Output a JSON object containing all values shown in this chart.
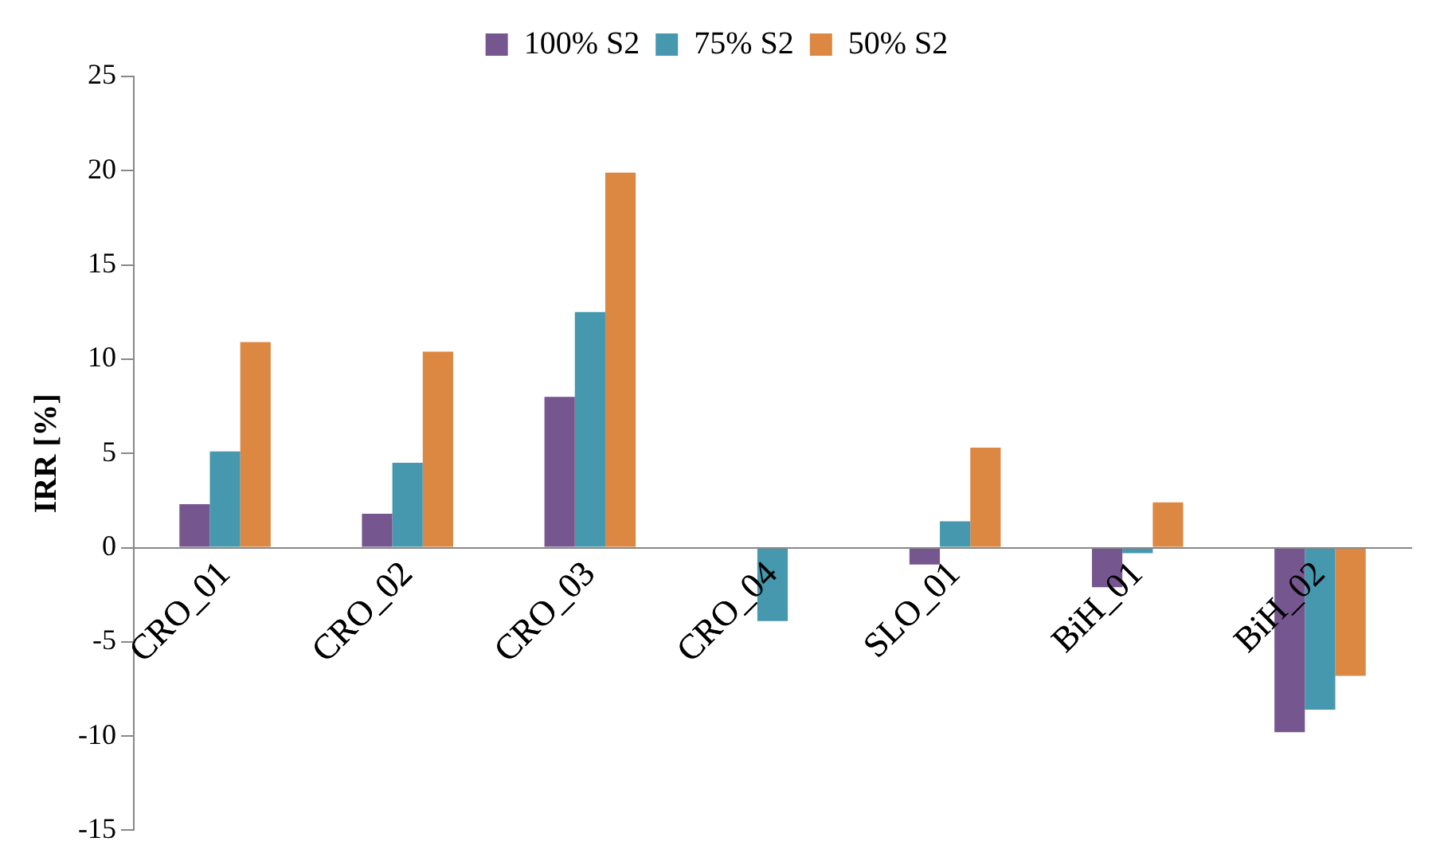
{
  "chart_data": {
    "type": "bar",
    "ylabel": "IRR [%]",
    "categories": [
      "CRO_01",
      "CRO_02",
      "CRO_03",
      "CRO_04",
      "SLO_01",
      "BiH_01",
      "BiH_02"
    ],
    "series": [
      {
        "name": "100% S2",
        "color": "#76568f",
        "values": [
          2.3,
          1.8,
          8.0,
          0,
          -0.9,
          -2.1,
          -9.8
        ]
      },
      {
        "name": "75% S2",
        "color": "#4598ae",
        "values": [
          5.1,
          4.5,
          12.5,
          -3.9,
          1.4,
          -0.3,
          -8.6
        ]
      },
      {
        "name": "50% S2",
        "color": "#dc8742",
        "values": [
          10.9,
          10.4,
          19.9,
          0,
          5.3,
          2.4,
          -6.8
        ]
      }
    ],
    "ylim": [
      -15,
      25
    ],
    "yticks": [
      -15,
      -10,
      -5,
      0,
      5,
      10,
      15,
      20,
      25
    ],
    "grid": false,
    "legend": "top"
  }
}
